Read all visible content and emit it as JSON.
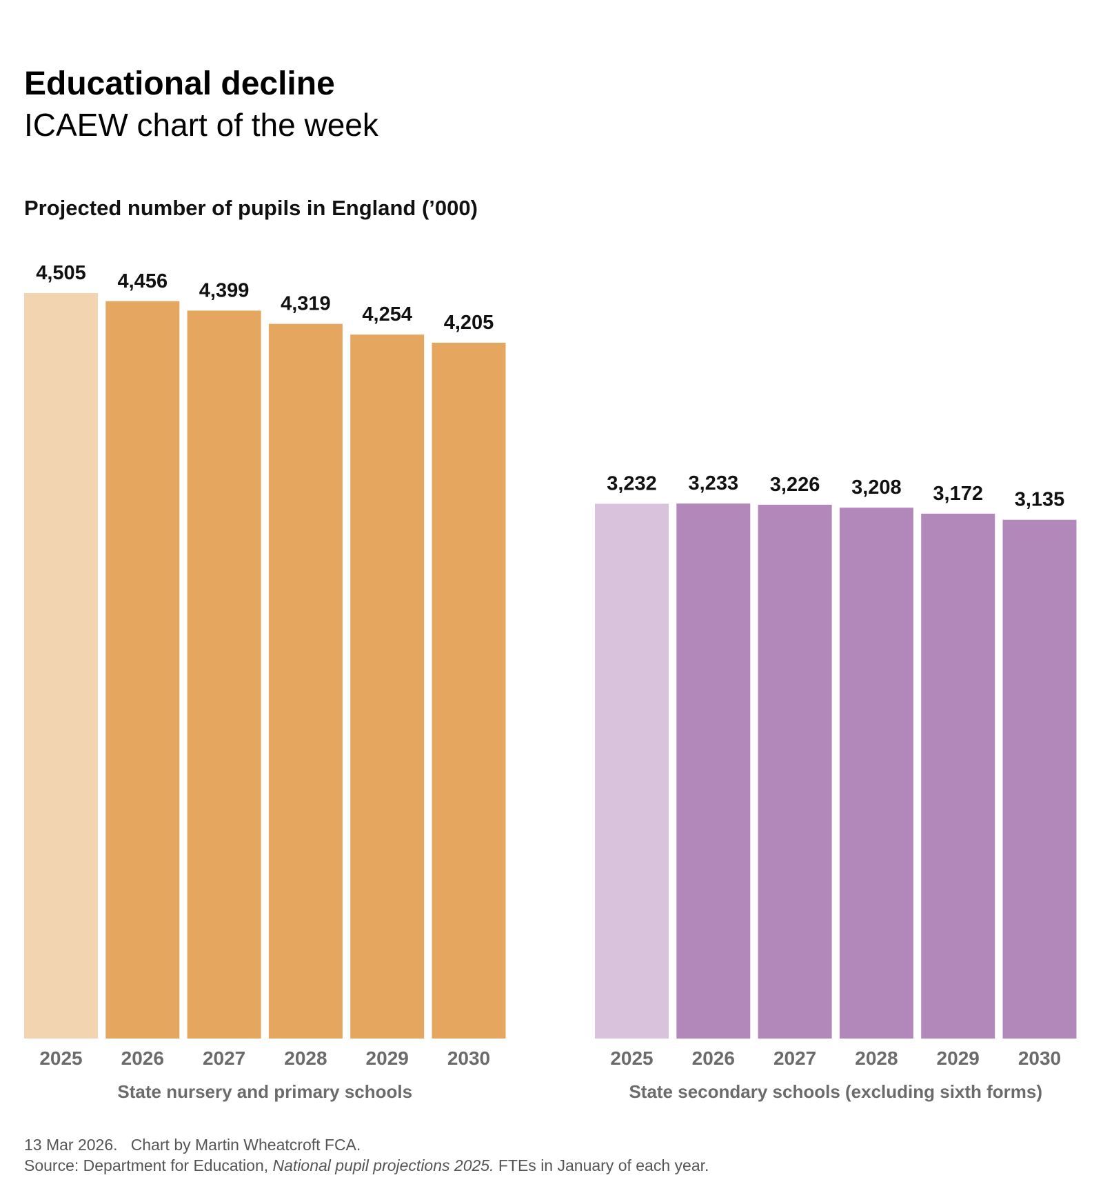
{
  "title": "Educational decline",
  "subtitle": "ICAEW chart of the week",
  "footer": {
    "line1": "13 Mar 2026.   Chart by Martin Wheatcroft FCA.",
    "source_prefix": "Source: Department for Education, ",
    "source_italic": "National pupil projections 2025.",
    "source_suffix": " FTEs in January of each year."
  },
  "chart_data": {
    "type": "bar",
    "title": "Projected number of pupils in England (’000)",
    "ylim": [
      0,
      4505
    ],
    "grid": false,
    "categories": [
      "2025",
      "2026",
      "2027",
      "2028",
      "2029",
      "2030"
    ],
    "groups": [
      {
        "name": "State nursery and primary schools",
        "values": [
          4505,
          4456,
          4399,
          4319,
          4254,
          4205
        ],
        "labels": [
          "4,505",
          "4,456",
          "4,399",
          "4,319",
          "4,254",
          "4,205"
        ],
        "color": "#E5A75F",
        "first_color": "#F2D4B1"
      },
      {
        "name": "State secondary schools (excluding sixth forms)",
        "values": [
          3232,
          3233,
          3226,
          3208,
          3172,
          3135
        ],
        "labels": [
          "3,232",
          "3,233",
          "3,226",
          "3,208",
          "3,172",
          "3,135"
        ],
        "color": "#B188B9",
        "first_color": "#D9C3DC"
      }
    ]
  }
}
